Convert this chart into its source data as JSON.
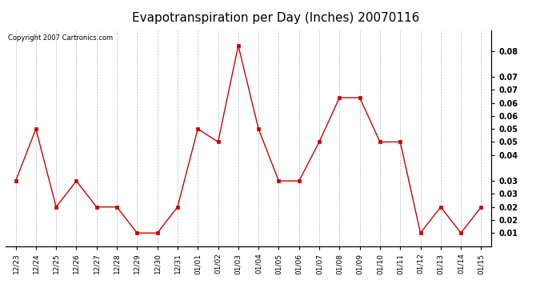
{
  "title": "Evapotranspiration per Day (Inches) 20070116",
  "copyright_text": "Copyright 2007 Cartronics.com",
  "labels": [
    "12/23",
    "12/24",
    "12/25",
    "12/26",
    "12/27",
    "12/28",
    "12/29",
    "12/30",
    "12/31",
    "01/01",
    "01/02",
    "01/03",
    "01/04",
    "01/05",
    "01/06",
    "01/07",
    "01/08",
    "01/09",
    "01/10",
    "01/11",
    "01/12",
    "01/13",
    "01/14",
    "01/15"
  ],
  "values": [
    0.03,
    0.05,
    0.02,
    0.03,
    0.02,
    0.02,
    0.01,
    0.01,
    0.02,
    0.05,
    0.045,
    0.082,
    0.05,
    0.03,
    0.03,
    0.045,
    0.062,
    0.062,
    0.045,
    0.045,
    0.01,
    0.02,
    0.01,
    0.02
  ],
  "line_color": "#cc0000",
  "marker_color": "#cc0000",
  "bg_color": "#ffffff",
  "plot_bg_color": "#ffffff",
  "grid_color": "#bbbbbb",
  "right_tick_positions": [
    0.08,
    0.07,
    0.065,
    0.06,
    0.055,
    0.05,
    0.045,
    0.04,
    0.03,
    0.025,
    0.02,
    0.015,
    0.01
  ],
  "right_tick_labels": [
    "0.08",
    "0.07",
    "0.07",
    "0.06",
    "0.06",
    "0.05",
    "0.05",
    "0.04",
    "0.03",
    "0.03",
    "0.02",
    "0.02",
    "0.01"
  ],
  "ylim_low": 0.005,
  "ylim_high": 0.088
}
